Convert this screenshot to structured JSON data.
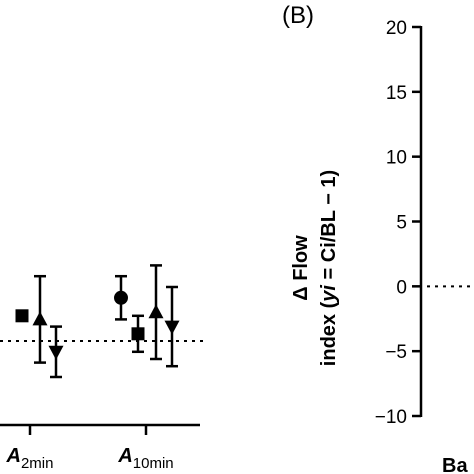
{
  "chart_data": [
    {
      "type": "scatter",
      "panel": "A",
      "categories": [
        {
          "main": "A",
          "sub": "2min"
        },
        {
          "main": "A",
          "sub": "10min"
        }
      ],
      "reference_line": 0,
      "series": [
        {
          "marker": "circle",
          "values": [
            null,
            1.2
          ],
          "errors": [
            null,
            0.6
          ]
        },
        {
          "marker": "square",
          "values": [
            0.7,
            0.2
          ],
          "errors": [
            null,
            0.5
          ]
        },
        {
          "marker": "triangle-up",
          "values": [
            0.6,
            0.8
          ],
          "errors": [
            1.2,
            1.3
          ]
        },
        {
          "marker": "triangle-down",
          "values": [
            -0.3,
            0.4
          ],
          "errors": [
            0.7,
            1.1
          ]
        }
      ]
    },
    {
      "type": "scatter",
      "panel": "B",
      "panel_label": "(B)",
      "ylabel_line1": "Δ Flow",
      "ylabel_line2_parts": [
        "index (",
        "yi",
        " = Ci/BL − 1)"
      ],
      "ylim": [
        -10,
        20
      ],
      "yticks": [
        20,
        15,
        10,
        5,
        0,
        -5,
        -10
      ],
      "ytick_labels": [
        "20",
        "15",
        "10",
        "5",
        "0",
        "−5",
        "−10"
      ],
      "reference_line": 0,
      "xcategory_visible": "Ba"
    }
  ]
}
